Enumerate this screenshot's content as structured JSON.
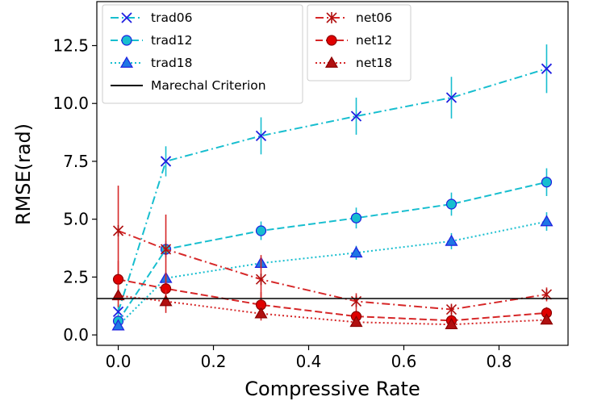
{
  "chart_data": {
    "type": "line",
    "xlabel": "Compressive Rate",
    "ylabel": "RMSE(rad)",
    "xlim": [
      -0.045,
      0.945
    ],
    "ylim": [
      -0.45,
      14.4
    ],
    "xticks": [
      "0.0",
      "0.2",
      "0.4",
      "0.6",
      "0.8"
    ],
    "yticks": [
      "0.0",
      "2.5",
      "5.0",
      "7.5",
      "10.0",
      "12.5"
    ],
    "grid": false,
    "legend_position": "top-left",
    "series": [
      {
        "name": "trad06",
        "color": "#17becf",
        "marker_color": "#1f1fe0",
        "linestyle": "dashdot",
        "marker": "x",
        "x": [
          0.0,
          0.1,
          0.3,
          0.5,
          0.7,
          0.9
        ],
        "y": [
          1.0,
          7.5,
          8.6,
          9.45,
          10.25,
          11.5
        ],
        "err": [
          0.3,
          0.65,
          0.8,
          0.8,
          0.9,
          1.05
        ]
      },
      {
        "name": "trad12",
        "color": "#17becf",
        "marker_color": "#17becf",
        "linestyle": "dashed",
        "marker": "o",
        "x": [
          0.0,
          0.1,
          0.3,
          0.5,
          0.7,
          0.9
        ],
        "y": [
          0.6,
          3.7,
          4.5,
          5.05,
          5.65,
          6.6
        ],
        "err": [
          0.2,
          0.35,
          0.4,
          0.45,
          0.5,
          0.6
        ]
      },
      {
        "name": "trad18",
        "color": "#17becf",
        "marker_color": "#1f77e4",
        "linestyle": "dotted",
        "marker": "^",
        "x": [
          0.0,
          0.1,
          0.3,
          0.5,
          0.7,
          0.9
        ],
        "y": [
          0.4,
          2.45,
          3.1,
          3.55,
          4.05,
          4.9
        ],
        "err": [
          0.1,
          0.25,
          0.25,
          0.3,
          0.35,
          0.4
        ]
      },
      {
        "name": "net06",
        "color": "#d62728",
        "marker_color": "#b01010",
        "linestyle": "dashdot",
        "marker": "asterisk",
        "x": [
          0.0,
          0.1,
          0.3,
          0.5,
          0.7,
          0.9
        ],
        "y": [
          4.5,
          3.7,
          2.4,
          1.45,
          1.1,
          1.75
        ],
        "err": [
          1.95,
          1.5,
          1.05,
          0.35,
          0.2,
          0.3
        ]
      },
      {
        "name": "net12",
        "color": "#d62728",
        "marker_color": "#e00000",
        "linestyle": "dashed",
        "marker": "o",
        "x": [
          0.0,
          0.1,
          0.3,
          0.5,
          0.7,
          0.9
        ],
        "y": [
          2.4,
          2.0,
          1.3,
          0.8,
          0.62,
          0.95
        ],
        "err": [
          0.8,
          0.55,
          0.55,
          0.3,
          0.25,
          0.25
        ]
      },
      {
        "name": "net18",
        "color": "#d62728",
        "marker_color": "#b01010",
        "linestyle": "dotted",
        "marker": "^",
        "x": [
          0.0,
          0.1,
          0.3,
          0.5,
          0.7,
          0.9
        ],
        "y": [
          1.7,
          1.45,
          0.92,
          0.55,
          0.45,
          0.65
        ],
        "err": [
          0.5,
          0.5,
          0.3,
          0.2,
          0.15,
          0.15
        ]
      },
      {
        "name": "Marechal Criterion",
        "color": "#000000",
        "linestyle": "solid",
        "marker": "none",
        "hline": 1.57
      }
    ]
  }
}
